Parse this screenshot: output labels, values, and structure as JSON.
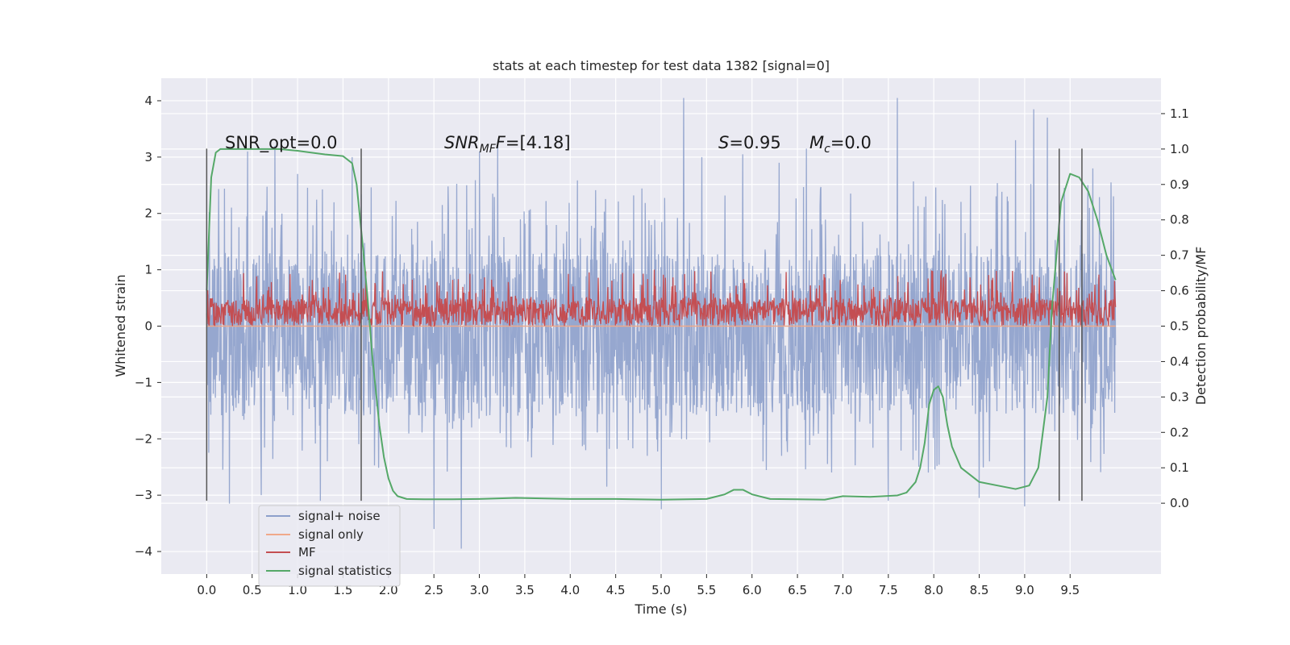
{
  "chart_data": {
    "type": "line",
    "title": "stats at each timestep for test data 1382 [signal=0]",
    "xlabel": "Time (s)",
    "ylabel": "Whitened strain",
    "y2label": "Detection probability/MF",
    "xlim": [
      -0.5,
      10.5
    ],
    "ylim": [
      -4.4,
      4.4
    ],
    "y2lim": [
      -0.2,
      1.2
    ],
    "x_ticks": [
      "0.0",
      "0.5",
      "1.0",
      "1.5",
      "2.0",
      "2.5",
      "3.0",
      "3.5",
      "4.0",
      "4.5",
      "5.0",
      "5.5",
      "6.0",
      "6.5",
      "7.0",
      "7.5",
      "8.0",
      "8.5",
      "9.0",
      "9.5"
    ],
    "y_ticks": [
      "4",
      "3",
      "2",
      "1",
      "0",
      "−1",
      "−2",
      "−3",
      "−4"
    ],
    "y2_ticks": [
      "1.1",
      "1.0",
      "0.9",
      "0.8",
      "0.7",
      "0.6",
      "0.5",
      "0.4",
      "0.3",
      "0.2",
      "0.1",
      "0.0"
    ],
    "grid": true,
    "legend_position": "lower-left",
    "legend": [
      {
        "label": "signal+ noise",
        "color": "#8da0cb"
      },
      {
        "label": "signal only",
        "color": "#f0a98a"
      },
      {
        "label": "MF",
        "color": "#c44e52"
      },
      {
        "label": "signal statistics",
        "color": "#55a868"
      }
    ],
    "annotations": {
      "snr_opt": "SNR_opt=0.0",
      "snr_mf_sym": "SNR",
      "snr_mf_sub": "MF",
      "snr_mf_val": "=[4.18]",
      "s_sym": "S",
      "s_val": "=0.95",
      "mc_sym": "M",
      "mc_sub": "c",
      "mc_val": "=0.0"
    },
    "vertical_lines_x": [
      0.0,
      1.7,
      9.38,
      9.63
    ],
    "vertical_lines_range": [
      -3.1,
      3.15
    ],
    "series": [
      {
        "name": "signal+ noise",
        "color": "#8da0cb",
        "axis": "left",
        "x_range": [
          0.0,
          10.0
        ],
        "band": [
          -1.6,
          1.3
        ],
        "peak_x": [
          0.25,
          0.45,
          0.6,
          0.75,
          1.0,
          1.25,
          1.6,
          2.5,
          2.8,
          3.0,
          3.2,
          4.4,
          5.0,
          5.25,
          5.45,
          5.9,
          6.3,
          6.6,
          7.5,
          7.6,
          8.5,
          8.9,
          9.0,
          9.1,
          9.25,
          9.75,
          9.95
        ],
        "peak_y": [
          -3.15,
          3.1,
          -3.0,
          3.2,
          2.7,
          -3.1,
          3.0,
          -3.6,
          -3.95,
          3.1,
          3.2,
          -2.85,
          -3.25,
          4.05,
          3.0,
          3.05,
          2.9,
          3.15,
          -3.1,
          4.05,
          -3.05,
          3.3,
          -3.2,
          3.85,
          3.7,
          2.8,
          2.55
        ]
      },
      {
        "name": "signal only",
        "color": "#f0a98a",
        "axis": "left",
        "x": [
          0.0,
          10.0
        ],
        "y": [
          0.0,
          0.0
        ]
      },
      {
        "name": "MF",
        "color": "#c44e52",
        "axis": "right",
        "x_range": [
          0.0,
          10.0
        ],
        "band": [
          0.5,
          0.58
        ],
        "peak_max": 0.66
      },
      {
        "name": "signal statistics",
        "color": "#55a868",
        "axis": "right",
        "x": [
          0.0,
          0.05,
          0.1,
          0.15,
          0.3,
          0.5,
          0.8,
          1.0,
          1.3,
          1.5,
          1.6,
          1.65,
          1.72,
          1.78,
          1.82,
          1.86,
          1.9,
          1.95,
          2.0,
          2.05,
          2.1,
          2.2,
          2.4,
          2.7,
          3.0,
          3.4,
          4.0,
          4.5,
          5.0,
          5.5,
          5.7,
          5.8,
          5.9,
          6.0,
          6.2,
          6.5,
          6.8,
          7.0,
          7.3,
          7.6,
          7.7,
          7.8,
          7.85,
          7.9,
          7.95,
          8.0,
          8.05,
          8.1,
          8.15,
          8.2,
          8.3,
          8.5,
          8.7,
          8.9,
          9.05,
          9.15,
          9.25,
          9.3,
          9.4,
          9.5,
          9.6,
          9.7,
          9.8,
          9.9,
          10.0
        ],
        "y": [
          0.6,
          0.92,
          0.99,
          1.0,
          1.0,
          1.0,
          1.0,
          0.995,
          0.985,
          0.98,
          0.96,
          0.9,
          0.72,
          0.55,
          0.42,
          0.32,
          0.22,
          0.13,
          0.07,
          0.035,
          0.02,
          0.012,
          0.011,
          0.011,
          0.012,
          0.015,
          0.012,
          0.012,
          0.01,
          0.012,
          0.025,
          0.038,
          0.038,
          0.025,
          0.012,
          0.011,
          0.01,
          0.02,
          0.018,
          0.022,
          0.03,
          0.06,
          0.1,
          0.17,
          0.28,
          0.32,
          0.33,
          0.3,
          0.22,
          0.16,
          0.1,
          0.06,
          0.05,
          0.04,
          0.05,
          0.1,
          0.3,
          0.55,
          0.85,
          0.93,
          0.92,
          0.88,
          0.8,
          0.7,
          0.63
        ]
      }
    ]
  }
}
